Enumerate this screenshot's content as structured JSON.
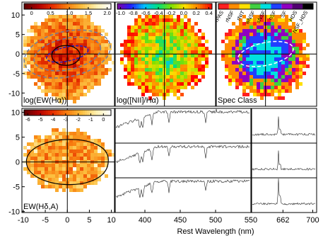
{
  "chart_data": [
    {
      "type": "heatmap",
      "label": "log(EW(Hα))",
      "xlim": [
        -10.3,
        10.7
      ],
      "ylim": [
        -13.4,
        13.3
      ],
      "yticks": [
        -10,
        -5,
        0,
        5,
        10
      ],
      "colorbar": {
        "colormap": "heat",
        "lim": [
          -0.2,
          2.1
        ],
        "ticks": [
          0,
          0.5,
          {
            "value": 1,
            "label": "1.0"
          },
          1.5,
          {
            "value": 2,
            "label": "2.0"
          }
        ]
      }
    },
    {
      "type": "heatmap",
      "label": "log([NII]/Hα)",
      "xlim": [
        -10.3,
        10.7
      ],
      "ylim": [
        -13.4,
        13.3
      ],
      "colorbar": {
        "colormap": "rainbow",
        "lim": [
          -1.05,
          0.45
        ],
        "ticks": [
          {
            "value": -1,
            "label": "-1.0"
          },
          -0.8,
          -0.6,
          -0.4,
          -0.2,
          {
            "value": 0,
            "label": "0.0"
          },
          0.2,
          0.4
        ]
      }
    },
    {
      "type": "classmap",
      "label": "Spec Class",
      "xlim": [
        -10.3,
        10.7
      ],
      "ylim": [
        -13.4,
        13.3
      ],
      "classes": [
        {
          "name": "rPAS",
          "color": "#ff2020"
        },
        {
          "name": "rNSF",
          "color": "#ff8c00"
        },
        {
          "name": "rNIT",
          "color": "#ffe000"
        },
        {
          "name": "wNSF",
          "color": "#40d040"
        },
        {
          "name": "sNSF",
          "color": "#00e0e0"
        },
        {
          "name": "nSF",
          "color": "#2040ff"
        },
        {
          "name": "SF",
          "color": "#9000c0"
        },
        {
          "name": "HDS",
          "color": "#500070"
        },
        {
          "name": "NSF_HDS",
          "color": "#000000"
        }
      ]
    },
    {
      "type": "heatmap",
      "label": "EW(Hδ,A)",
      "xlim": [
        -10.3,
        10.7
      ],
      "ylim": [
        -10.2,
        10.8
      ],
      "xticks": [
        -10,
        -5,
        0,
        5,
        10
      ],
      "yticks": [
        -10,
        -5,
        0,
        5,
        10
      ],
      "colorbar": {
        "colormap": "heat",
        "lim": [
          -6.3,
          0.6
        ],
        "ticks": [
          -6,
          -5,
          -4,
          -3,
          -2,
          -1,
          0
        ]
      }
    },
    {
      "type": "line",
      "xlim": [
        358,
        550
      ],
      "xticks": [
        400,
        450,
        500,
        550
      ],
      "xlabel": "Rest Wavelength (nm)"
    },
    {
      "type": "line",
      "xlim": [
        622,
        705
      ],
      "xticks": [
        662,
        700
      ]
    }
  ]
}
